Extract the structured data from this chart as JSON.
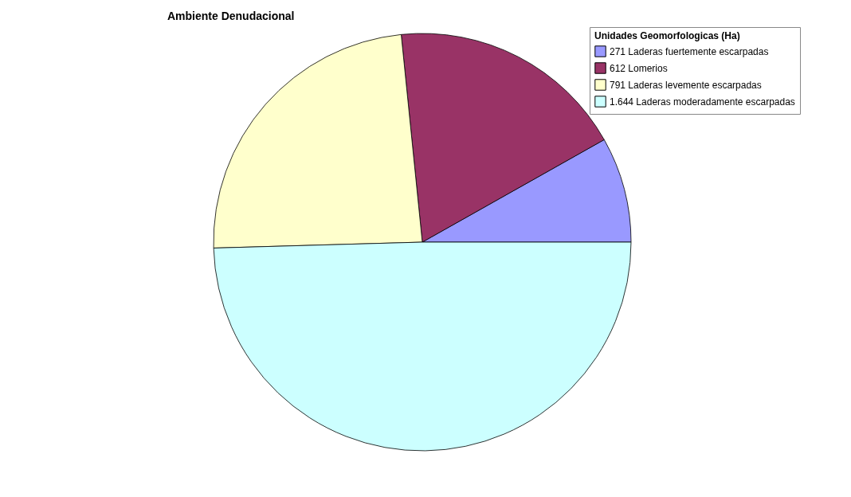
{
  "chart_data": {
    "type": "pie",
    "title": "Ambiente Denudacional",
    "legend_title": "Unidades Geomorfologicas (Ha)",
    "categories": [
      "271 Laderas fuertemente escarpadas",
      "612 Lomerios",
      "791 Laderas levemente escarpadas",
      "1.644 Laderas moderadamente escarpadas"
    ],
    "values": [
      271,
      612,
      791,
      1644
    ],
    "colors": [
      "#9999ff",
      "#993366",
      "#ffffcc",
      "#ccffff"
    ],
    "legend": "top right"
  }
}
